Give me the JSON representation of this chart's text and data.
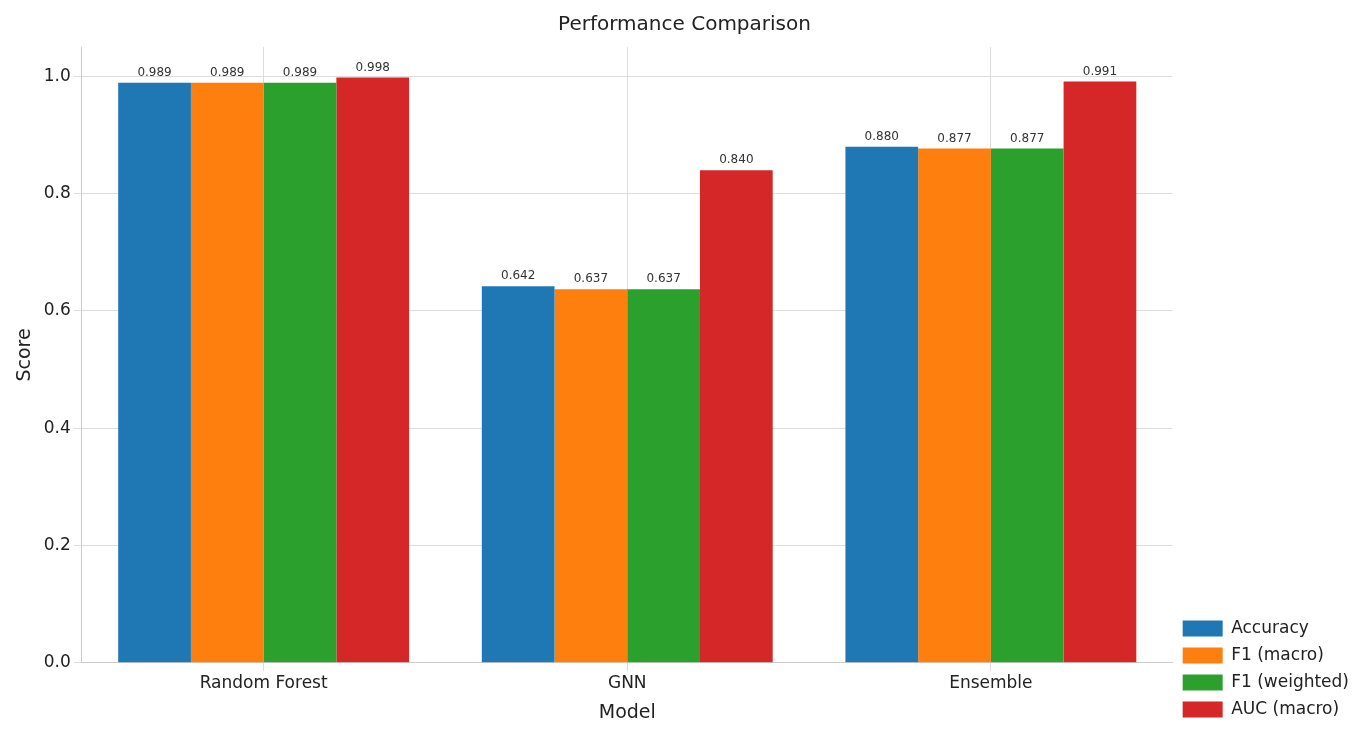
{
  "chart_data": {
    "type": "bar",
    "title": "Performance Comparison",
    "xlabel": "Model",
    "ylabel": "Score",
    "categories": [
      "Random Forest",
      "GNN",
      "Ensemble"
    ],
    "series": [
      {
        "name": "Accuracy",
        "color": "#1f77b4",
        "values": [
          0.989,
          0.642,
          0.88
        ],
        "value_labels": [
          "0.989",
          "0.642",
          "0.880"
        ]
      },
      {
        "name": "F1 (macro)",
        "color": "#ff7f0e",
        "values": [
          0.989,
          0.637,
          0.877
        ],
        "value_labels": [
          "0.989",
          "0.637",
          "0.877"
        ]
      },
      {
        "name": "F1 (weighted)",
        "color": "#2ca02c",
        "values": [
          0.989,
          0.637,
          0.877
        ],
        "value_labels": [
          "0.989",
          "0.637",
          "0.877"
        ]
      },
      {
        "name": "AUC (macro)",
        "color": "#d62728",
        "values": [
          0.998,
          0.84,
          0.991
        ],
        "value_labels": [
          "0.998",
          "0.840",
          "0.991"
        ]
      }
    ],
    "ylim": [
      0,
      1.05
    ],
    "yticks": [
      {
        "value": 0,
        "label": "0.0"
      },
      {
        "value": 0.2,
        "label": "0.2"
      },
      {
        "value": 0.4,
        "label": "0.4"
      },
      {
        "value": 0.6,
        "label": "0.6"
      },
      {
        "value": 0.8,
        "label": "0.8"
      },
      {
        "value": 1,
        "label": "1.0"
      }
    ],
    "grid": true,
    "legend": "bottom right"
  }
}
